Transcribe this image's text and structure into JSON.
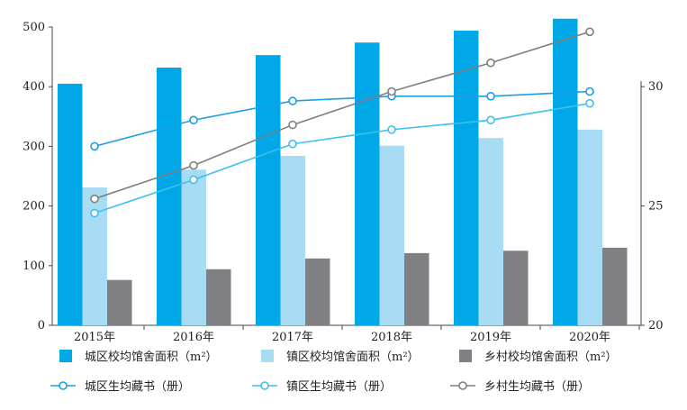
{
  "chart_data": {
    "type": "bar+line",
    "categories": [
      "2015年",
      "2016年",
      "2017年",
      "2018年",
      "2019年",
      "2020年"
    ],
    "left_axis": {
      "ylim": [
        0,
        500
      ],
      "ticks": [
        0,
        100,
        200,
        300,
        400,
        500
      ]
    },
    "right_axis": {
      "ylim": [
        20,
        32.5
      ],
      "ticks": [
        20,
        25,
        30
      ]
    },
    "bar_series": [
      {
        "name": "城区校均馆舍面积（m²）",
        "color": "#00a8e8",
        "values": [
          405,
          432,
          453,
          474,
          494,
          514
        ]
      },
      {
        "name": "镇区校均馆舍面积（m²）",
        "color": "#a8dcf5",
        "values": [
          231,
          261,
          284,
          301,
          314,
          328
        ]
      },
      {
        "name": "乡村校均馆舍面积（m²）",
        "color": "#808084",
        "values": [
          76,
          94,
          112,
          121,
          125,
          130
        ]
      }
    ],
    "line_series": [
      {
        "name": "城区生均藏书（册）",
        "color": "#1a9ee6",
        "values": [
          27.5,
          28.6,
          29.4,
          29.6,
          29.6,
          29.8
        ]
      },
      {
        "name": "镇区生均藏书（册）",
        "color": "#3cc0f0",
        "values": [
          24.7,
          26.1,
          27.6,
          28.2,
          28.6,
          29.3
        ]
      },
      {
        "name": "乡村生均藏书（册）",
        "color": "#7f7f7f",
        "values": [
          25.3,
          26.7,
          28.4,
          29.8,
          31.0,
          32.3
        ]
      }
    ],
    "legend": "bottom",
    "grid": false
  }
}
